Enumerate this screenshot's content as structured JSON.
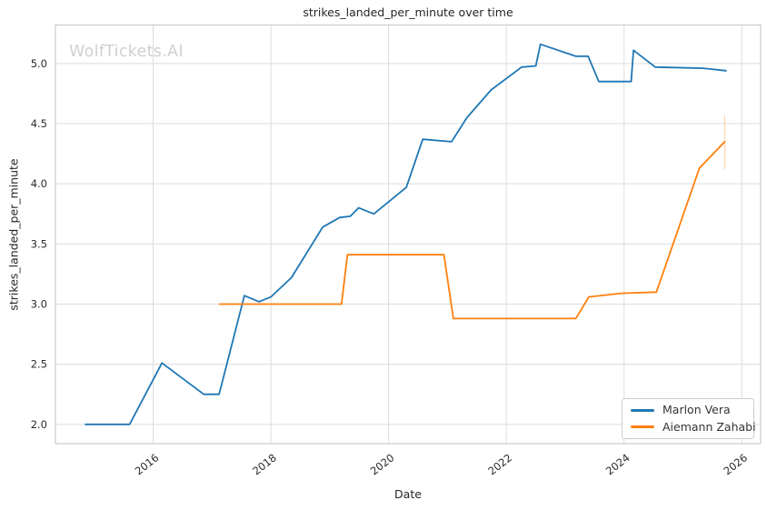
{
  "figure": {
    "watermark": "WolfTickets.AI",
    "colors": {
      "series_blue": "#1f77b4",
      "series_orange": "#ff7f0e",
      "grid": "#dcdcdc",
      "spine": "#cccccc",
      "text": "#262626",
      "watermark": "#d0d0d0"
    }
  },
  "chart_data": {
    "type": "line",
    "title": "strikes_landed_per_minute over time",
    "xlabel": "Date",
    "ylabel": "strikes_landed_per_minute",
    "grid": true,
    "legend_position": "lower right",
    "x_domain": [
      2014.34,
      2026.32
    ],
    "y_domain": [
      1.84,
      5.32
    ],
    "x_ticks": [
      {
        "value": 2016,
        "label": "2016"
      },
      {
        "value": 2018,
        "label": "2018"
      },
      {
        "value": 2020,
        "label": "2020"
      },
      {
        "value": 2022,
        "label": "2022"
      },
      {
        "value": 2024,
        "label": "2024"
      },
      {
        "value": 2026,
        "label": "2026"
      }
    ],
    "y_ticks": [
      {
        "value": 2.0,
        "label": "2.0"
      },
      {
        "value": 2.5,
        "label": "2.5"
      },
      {
        "value": 3.0,
        "label": "3.0"
      },
      {
        "value": 3.5,
        "label": "3.5"
      },
      {
        "value": 4.0,
        "label": "4.0"
      },
      {
        "value": 4.5,
        "label": "4.5"
      },
      {
        "value": 5.0,
        "label": "5.0"
      }
    ],
    "series": [
      {
        "name": "Marlon Vera",
        "color": "#1f77b4",
        "points": [
          [
            2014.85,
            2.0
          ],
          [
            2015.6,
            2.0
          ],
          [
            2016.15,
            2.51
          ],
          [
            2016.86,
            2.25
          ],
          [
            2017.12,
            2.25
          ],
          [
            2017.55,
            3.07
          ],
          [
            2017.8,
            3.02
          ],
          [
            2018.0,
            3.06
          ],
          [
            2018.35,
            3.22
          ],
          [
            2018.88,
            3.64
          ],
          [
            2019.17,
            3.72
          ],
          [
            2019.35,
            3.73
          ],
          [
            2019.49,
            3.8
          ],
          [
            2019.75,
            3.75
          ],
          [
            2020.3,
            3.97
          ],
          [
            2020.58,
            4.37
          ],
          [
            2021.07,
            4.35
          ],
          [
            2021.33,
            4.55
          ],
          [
            2021.74,
            4.78
          ],
          [
            2022.26,
            4.97
          ],
          [
            2022.5,
            4.98
          ],
          [
            2022.58,
            5.16
          ],
          [
            2023.18,
            5.06
          ],
          [
            2023.39,
            5.06
          ],
          [
            2023.57,
            4.85
          ],
          [
            2024.12,
            4.85
          ],
          [
            2024.16,
            5.11
          ],
          [
            2024.53,
            4.97
          ],
          [
            2025.35,
            4.96
          ],
          [
            2025.73,
            4.94
          ]
        ]
      },
      {
        "name": "Aiemann Zahabi",
        "color": "#ff7f0e",
        "points": [
          [
            2017.13,
            3.0
          ],
          [
            2019.2,
            3.0
          ],
          [
            2019.3,
            3.41
          ],
          [
            2020.94,
            3.41
          ],
          [
            2021.1,
            2.88
          ],
          [
            2023.18,
            2.88
          ],
          [
            2023.4,
            3.06
          ],
          [
            2023.96,
            3.09
          ],
          [
            2024.55,
            3.1
          ],
          [
            2025.28,
            4.13
          ],
          [
            2025.71,
            4.35
          ]
        ]
      }
    ],
    "annotations": {
      "error_bar": {
        "series": "Aiemann Zahabi",
        "x": 2025.71,
        "from": 4.12,
        "to": 4.57
      }
    }
  }
}
